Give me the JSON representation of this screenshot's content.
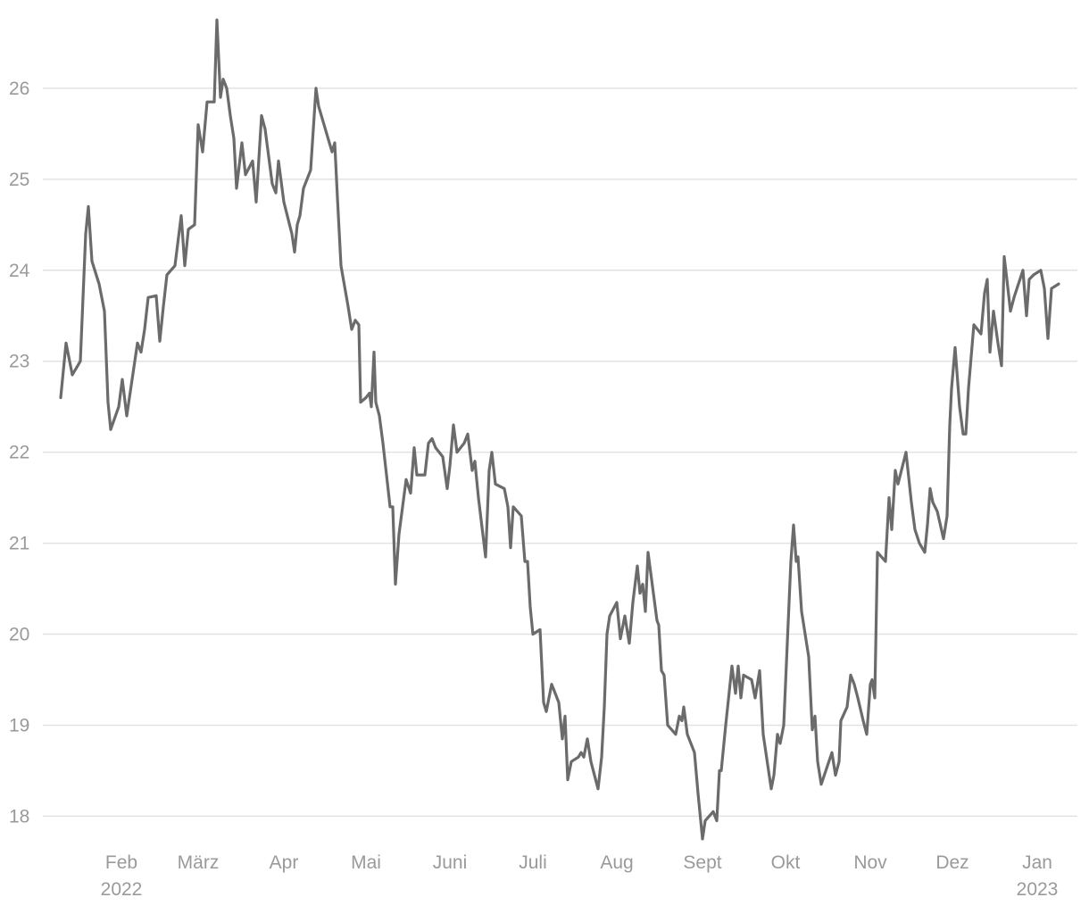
{
  "chart_data": {
    "type": "line",
    "x": [
      0,
      6,
      13,
      22,
      28,
      31,
      35,
      43,
      49,
      53,
      56,
      65,
      69,
      74,
      80,
      86,
      90,
      94,
      98,
      107,
      111,
      115,
      119,
      128,
      135,
      139,
      143,
      150,
      154,
      159,
      164,
      172,
      175,
      179,
      182,
      186,
      190,
      194,
      197,
      203,
      207,
      215,
      219,
      225,
      229,
      237,
      241,
      244,
      250,
      259,
      262,
      265,
      268,
      272,
      280,
      286,
      289,
      304,
      307,
      310,
      314,
      322,
      326,
      330,
      334,
      336,
      342,
      346,
      348,
      351,
      353,
      357,
      361,
      365,
      369,
      372,
      375,
      379,
      383,
      387,
      392,
      396,
      399,
      408,
      412,
      416,
      420,
      428,
      433,
      436,
      440,
      444,
      452,
      456,
      461,
      464,
      468,
      476,
      480,
      483,
      487,
      497,
      501,
      504,
      507,
      516,
      520,
      523,
      526,
      529,
      537,
      541,
      544,
      550,
      558,
      562,
      565,
      568,
      572,
      580,
      583,
      586,
      590,
      594,
      602,
      606,
      609,
      612,
      615,
      623,
      627,
      632,
      637,
      641,
      646,
      649,
      652,
      655,
      658,
      668,
      670,
      673,
      676,
      680,
      689,
      693,
      696,
      698,
      702,
      710,
      714,
      719,
      722,
      731,
      735,
      738,
      740,
      745,
      752,
      756,
      759,
      762,
      765,
      774,
      778,
      783,
      787,
      796,
      799,
      803,
      806,
      810,
      814,
      818,
      821,
      824,
      826,
      830,
      838,
      842,
      845,
      848,
      852,
      864,
      868,
      872,
      874,
      881,
      885,
      889,
      893,
      899,
      903,
      907,
      909,
      912,
      915,
      924,
      928,
      931,
      935,
      938,
      947,
      953,
      957,
      962,
      968,
      971,
      974,
      977,
      982,
      989,
      993,
      996,
      998,
      1002,
      1007,
      1011,
      1014,
      1017,
      1023,
      1031,
      1035,
      1038,
      1041,
      1045,
      1050,
      1054,
      1057,
      1060,
      1064,
      1068,
      1078,
      1082,
      1085,
      1090,
      1098,
      1102,
      1106,
      1110,
      1118
    ],
    "values": [
      22.6,
      23.2,
      22.85,
      23.0,
      24.4,
      24.7,
      24.1,
      23.85,
      23.55,
      22.55,
      22.25,
      22.5,
      22.8,
      22.4,
      22.8,
      23.2,
      23.1,
      23.35,
      23.7,
      23.72,
      23.22,
      23.6,
      23.95,
      24.05,
      24.6,
      24.05,
      24.45,
      24.5,
      25.6,
      25.3,
      25.85,
      25.85,
      26.75,
      25.9,
      26.1,
      26.0,
      25.7,
      25.45,
      24.9,
      25.4,
      25.05,
      25.2,
      24.75,
      25.7,
      25.55,
      24.95,
      24.85,
      25.2,
      24.75,
      24.4,
      24.2,
      24.5,
      24.6,
      24.9,
      25.1,
      26.0,
      25.8,
      25.3,
      25.4,
      24.8,
      24.05,
      23.6,
      23.35,
      23.45,
      23.4,
      22.55,
      22.6,
      22.65,
      22.5,
      23.1,
      22.55,
      22.4,
      22.1,
      21.75,
      21.4,
      21.4,
      20.55,
      21.1,
      21.4,
      21.7,
      21.55,
      22.05,
      21.75,
      21.75,
      22.1,
      22.15,
      22.05,
      21.95,
      21.6,
      21.85,
      22.3,
      22.0,
      22.1,
      22.2,
      21.8,
      21.9,
      21.5,
      20.85,
      21.8,
      22.0,
      21.65,
      21.6,
      21.4,
      20.95,
      21.4,
      21.3,
      20.8,
      20.8,
      20.3,
      20.0,
      20.05,
      19.25,
      19.15,
      19.45,
      19.25,
      18.85,
      19.1,
      18.4,
      18.6,
      18.65,
      18.7,
      18.65,
      18.85,
      18.6,
      18.3,
      18.65,
      19.2,
      20.0,
      20.2,
      20.35,
      19.95,
      20.2,
      19.9,
      20.35,
      20.75,
      20.45,
      20.55,
      20.25,
      20.9,
      20.15,
      20.1,
      19.6,
      19.55,
      19.0,
      18.9,
      19.1,
      19.05,
      19.2,
      18.9,
      18.7,
      18.25,
      17.75,
      17.95,
      18.05,
      17.95,
      18.5,
      18.5,
      19.0,
      19.65,
      19.35,
      19.65,
      19.3,
      19.55,
      19.5,
      19.3,
      19.6,
      18.9,
      18.3,
      18.45,
      18.9,
      18.8,
      19.0,
      19.9,
      20.8,
      21.2,
      20.8,
      20.85,
      20.25,
      19.75,
      18.95,
      19.1,
      18.6,
      18.35,
      18.7,
      18.45,
      18.6,
      19.05,
      19.2,
      19.55,
      19.45,
      19.3,
      19.05,
      18.9,
      19.45,
      19.5,
      19.3,
      20.9,
      20.8,
      21.5,
      21.15,
      21.8,
      21.65,
      22.0,
      21.45,
      21.15,
      21.0,
      20.9,
      21.2,
      21.6,
      21.45,
      21.35,
      21.05,
      21.3,
      22.3,
      22.7,
      23.15,
      22.5,
      22.2,
      22.2,
      22.7,
      23.4,
      23.3,
      23.75,
      23.9,
      23.1,
      23.55,
      23.2,
      22.95,
      24.15,
      23.9,
      23.55,
      23.7,
      24.0,
      23.5,
      23.9,
      23.95,
      24.0,
      23.8,
      23.25,
      23.8,
      23.85
    ],
    "color": "#6b6b6b",
    "xlim": [
      -68,
      1139
    ],
    "xticks": [
      {
        "value": 68,
        "label": "Feb 2022"
      },
      {
        "value": 154,
        "label": "März"
      },
      {
        "value": 250,
        "label": "Apr"
      },
      {
        "value": 342,
        "label": "Mai"
      },
      {
        "value": 436,
        "label": "Juni"
      },
      {
        "value": 529,
        "label": "Juli"
      },
      {
        "value": 623,
        "label": "Aug"
      },
      {
        "value": 719,
        "label": "Sept"
      },
      {
        "value": 812,
        "label": "Okt"
      },
      {
        "value": 907,
        "label": "Nov"
      },
      {
        "value": 999,
        "label": "Dez"
      },
      {
        "value": 1094,
        "label": "Jan 2023"
      }
    ],
    "ylim": [
      17.7,
      26.97
    ],
    "yticks": [
      18,
      19,
      20,
      21,
      22,
      23,
      24,
      25,
      26
    ],
    "grid": true
  }
}
